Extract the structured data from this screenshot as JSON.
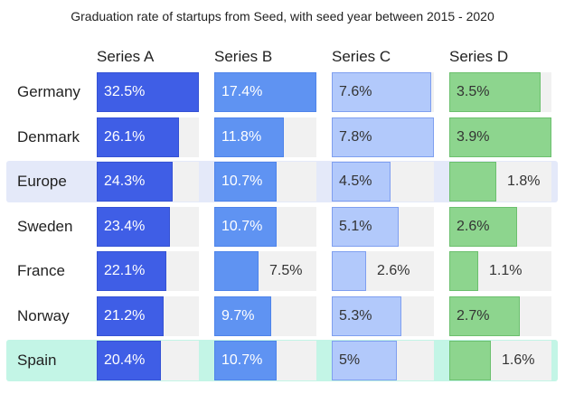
{
  "chart_data": {
    "type": "table",
    "title": "Graduation rate of startups from Seed, with seed year between 2015 - 2020",
    "columns": [
      "Series A",
      "Series B",
      "Series C",
      "Series D"
    ],
    "max_values": [
      32.5,
      17.4,
      7.8,
      3.9
    ],
    "series_colors": [
      {
        "fill": "#3f5ee6",
        "border": "#3552d4",
        "text": "#ffffff"
      },
      {
        "fill": "#5f93f2",
        "border": "#4f84ea",
        "text": "#ffffff"
      },
      {
        "fill": "#b2c9fb",
        "border": "#7f9ff0",
        "text": "#333333"
      },
      {
        "fill": "#8dd58e",
        "border": "#6cc06e",
        "text": "#333333"
      }
    ],
    "rows": [
      {
        "label": "Germany",
        "values": [
          32.5,
          17.4,
          7.6,
          3.5
        ],
        "display": [
          "32.5%",
          "17.4%",
          "7.6%",
          "3.5%"
        ],
        "highlight": null
      },
      {
        "label": "Denmark",
        "values": [
          26.1,
          11.8,
          7.8,
          3.9
        ],
        "display": [
          "26.1%",
          "11.8%",
          "7.8%",
          "3.9%"
        ],
        "highlight": null
      },
      {
        "label": "Europe",
        "values": [
          24.3,
          10.7,
          4.5,
          1.8
        ],
        "display": [
          "24.3%",
          "10.7%",
          "4.5%",
          "1.8%"
        ],
        "highlight": "#e4e9f9"
      },
      {
        "label": "Sweden",
        "values": [
          23.4,
          10.7,
          5.1,
          2.6
        ],
        "display": [
          "23.4%",
          "10.7%",
          "5.1%",
          "2.6%"
        ],
        "highlight": null
      },
      {
        "label": "France",
        "values": [
          22.1,
          7.5,
          2.6,
          1.1
        ],
        "display": [
          "22.1%",
          "7.5%",
          "2.6%",
          "1.1%"
        ],
        "highlight": null
      },
      {
        "label": "Norway",
        "values": [
          21.2,
          9.7,
          5.3,
          2.7
        ],
        "display": [
          "21.2%",
          "9.7%",
          "5.3%",
          "2.7%"
        ],
        "highlight": null
      },
      {
        "label": "Spain",
        "values": [
          20.4,
          10.7,
          5.0,
          1.6
        ],
        "display": [
          "20.4%",
          "10.7%",
          "5%",
          "1.6%"
        ],
        "highlight": "#c3f5e6"
      }
    ]
  }
}
